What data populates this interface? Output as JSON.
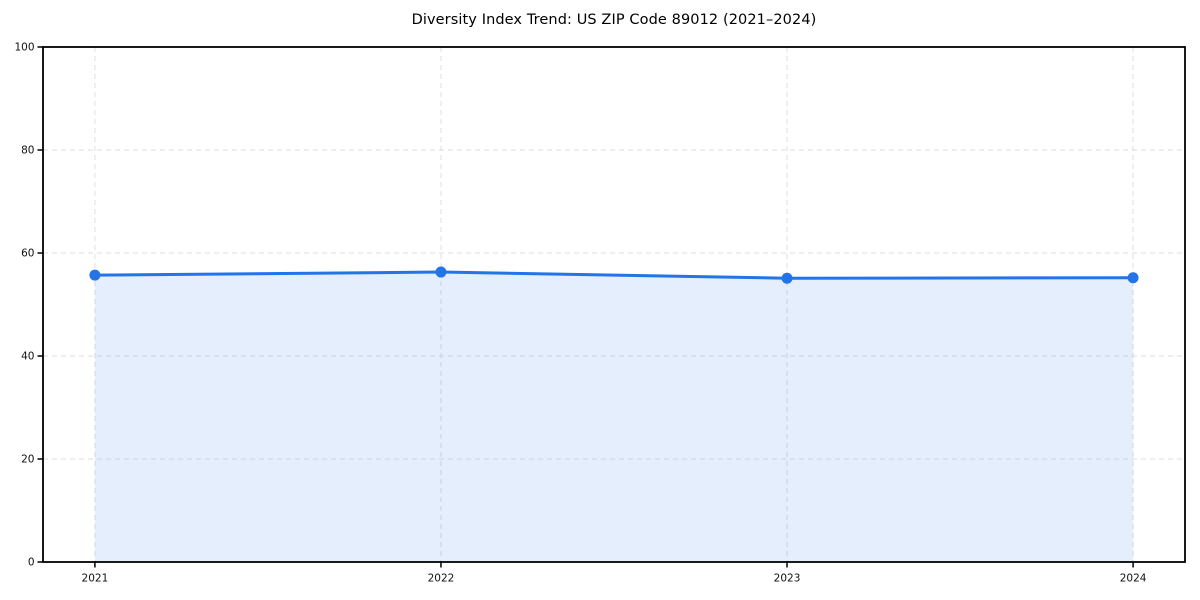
{
  "figure": {
    "background": "#ffffff"
  },
  "chart_data": {
    "type": "area",
    "title": "Diversity Index Trend: US ZIP Code 89012 (2021–2024)",
    "categories": [
      "2021",
      "2022",
      "2023",
      "2024"
    ],
    "x": [
      2021,
      2022,
      2023,
      2024
    ],
    "series": [
      {
        "name": "Diversity Index",
        "values": [
          55.7,
          56.3,
          55.1,
          55.2
        ]
      }
    ],
    "xlabel": "",
    "ylabel": "",
    "xlim": [
      2020.85,
      2024.15
    ],
    "ylim": [
      0,
      100
    ],
    "yticks": [
      0,
      20,
      40,
      60,
      80,
      100
    ],
    "xticks": [
      2021,
      2022,
      2023,
      2024
    ],
    "grid": true,
    "grid_style": "dashed",
    "legend_position": "none",
    "line_color": "#2274e8",
    "marker_color": "#2274e8",
    "fill_color": "rgba(34,116,232,0.12)",
    "grid_color": "#dedede",
    "spine_color": "#000000",
    "tick_label_color": "#111111"
  }
}
